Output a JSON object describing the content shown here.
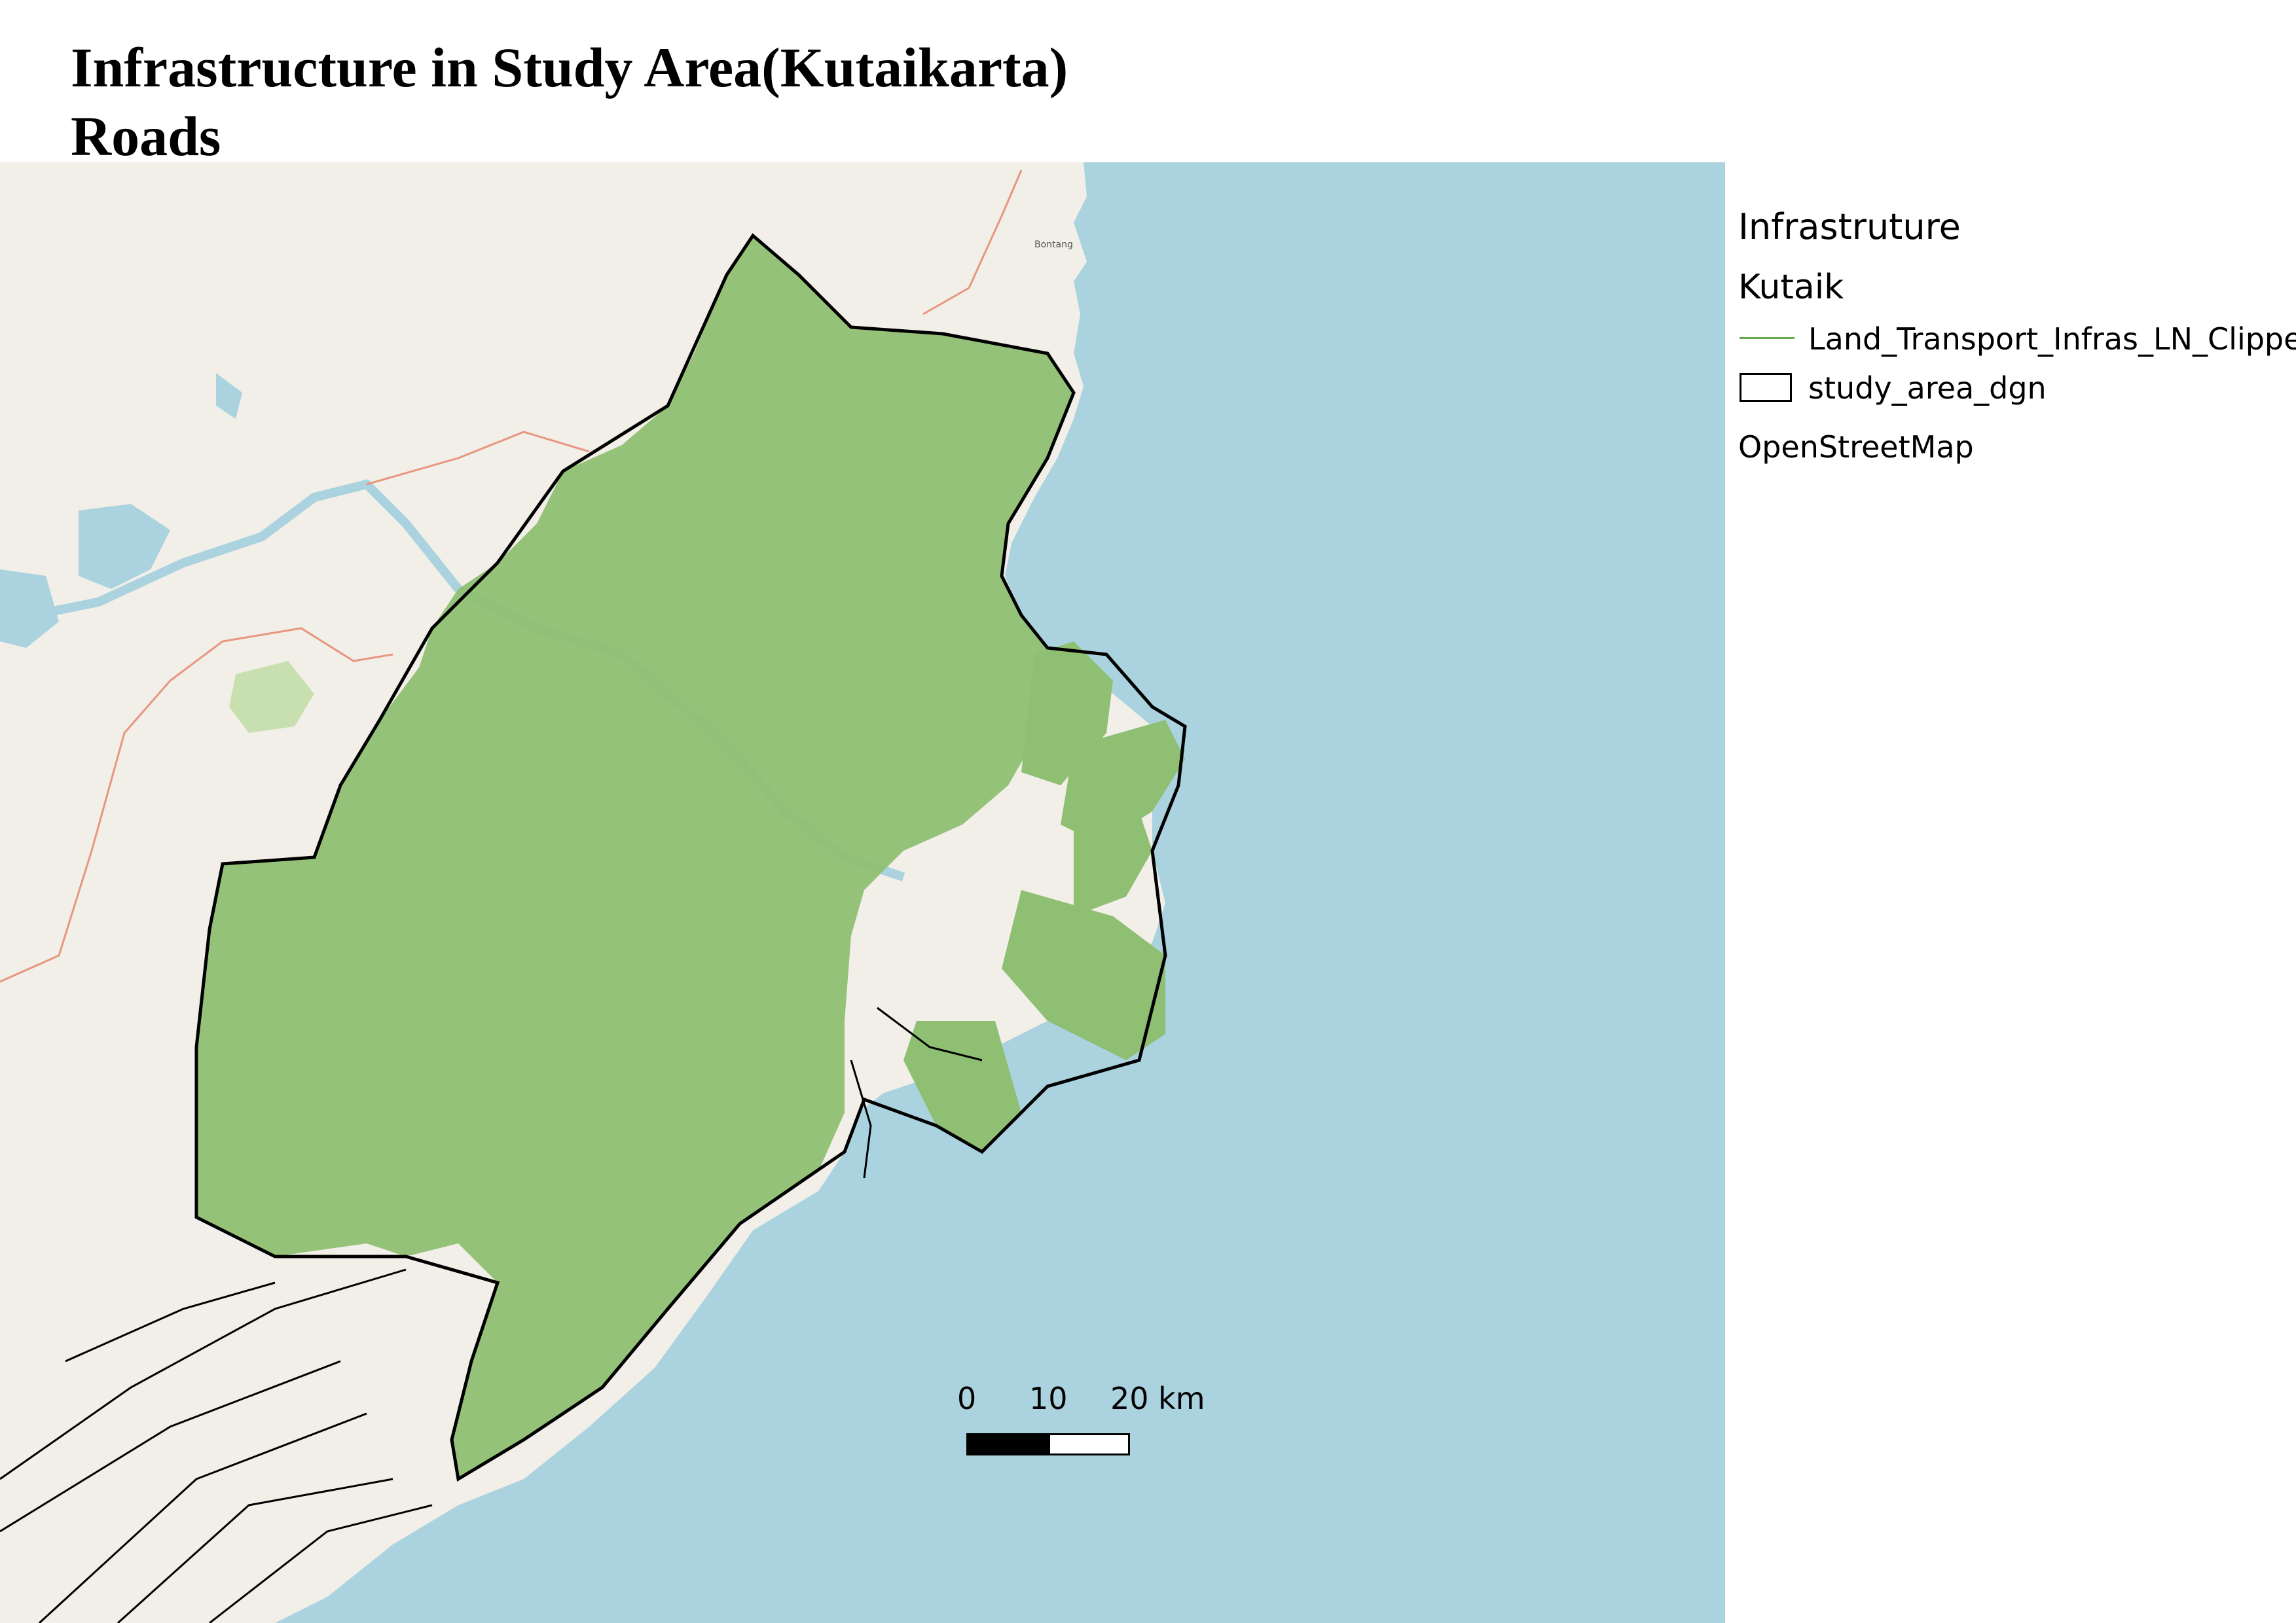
{
  "title": {
    "line1": "Infrastructure in Study Area(Kutaikarta)",
    "line2": "Roads"
  },
  "legend": {
    "heading": "Infrastruture",
    "group": "Kutaik",
    "items": [
      {
        "label": "Land_Transport_Infras_LN_Clippe",
        "symbol": "line",
        "color": "#6aaa4f"
      },
      {
        "label": "study_area_dgn",
        "symbol": "outline-box",
        "color": "#000000"
      }
    ],
    "basemap_label": "OpenStreetMap"
  },
  "scale_bar": {
    "labels": [
      "0",
      "10",
      "20 km"
    ]
  },
  "map": {
    "place_labels": [
      "Bontang"
    ],
    "colors": {
      "sea": "#aad3df",
      "land": "#f2efe9",
      "roads": "#6aaa4f",
      "boundaries": "#000000",
      "admin_boundary": "#e8967e",
      "lakes": "#aad3df",
      "forest": "#c8e0b0"
    }
  }
}
